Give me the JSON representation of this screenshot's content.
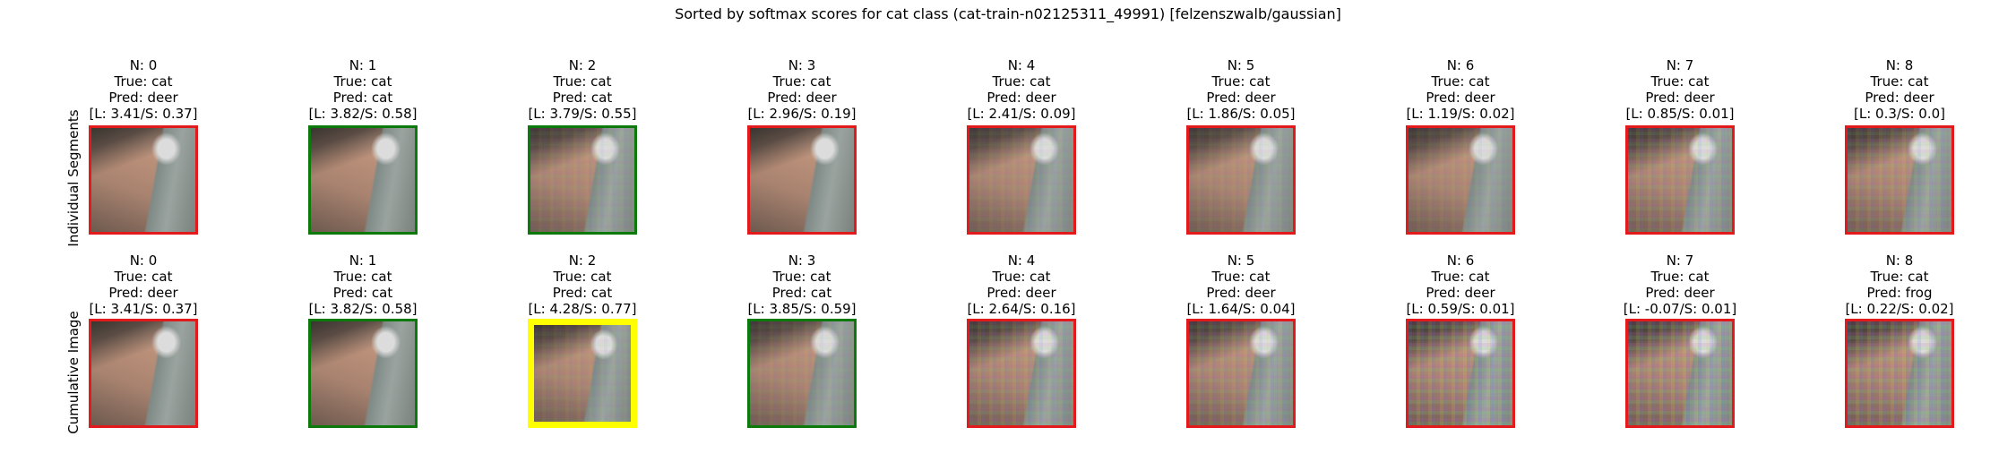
{
  "title": "Sorted by softmax scores for cat class (cat-train-n02125311_49991) [felzenszwalb/gaussian]",
  "rows": [
    {
      "label": "Individual Segments",
      "panels": [
        {
          "n": "N: 0",
          "true": "True: cat",
          "pred": "Pred: deer",
          "score": "[L: 3.41/S: 0.37]",
          "border": "red",
          "noise": 0
        },
        {
          "n": "N: 1",
          "true": "True: cat",
          "pred": "Pred: cat",
          "score": "[L: 3.82/S: 0.58]",
          "border": "green",
          "noise": 0
        },
        {
          "n": "N: 2",
          "true": "True: cat",
          "pred": "Pred: cat",
          "score": "[L: 3.79/S: 0.55]",
          "border": "green",
          "noise": 1
        },
        {
          "n": "N: 3",
          "true": "True: cat",
          "pred": "Pred: deer",
          "score": "[L: 2.96/S: 0.19]",
          "border": "red",
          "noise": 0
        },
        {
          "n": "N: 4",
          "true": "True: cat",
          "pred": "Pred: deer",
          "score": "[L: 2.41/S: 0.09]",
          "border": "red",
          "noise": 1
        },
        {
          "n": "N: 5",
          "true": "True: cat",
          "pred": "Pred: deer",
          "score": "[L: 1.86/S: 0.05]",
          "border": "red",
          "noise": 1
        },
        {
          "n": "N: 6",
          "true": "True: cat",
          "pred": "Pred: deer",
          "score": "[L: 1.19/S: 0.02]",
          "border": "red",
          "noise": 1
        },
        {
          "n": "N: 7",
          "true": "True: cat",
          "pred": "Pred: deer",
          "score": "[L: 0.85/S: 0.01]",
          "border": "red",
          "noise": 2
        },
        {
          "n": "N: 8",
          "true": "True: cat",
          "pred": "Pred: deer",
          "score": "[L: 0.3/S: 0.0]",
          "border": "red",
          "noise": 2
        }
      ]
    },
    {
      "label": "Cumulative Image",
      "panels": [
        {
          "n": "N: 0",
          "true": "True: cat",
          "pred": "Pred: deer",
          "score": "[L: 3.41/S: 0.37]",
          "border": "red",
          "noise": 0
        },
        {
          "n": "N: 1",
          "true": "True: cat",
          "pred": "Pred: cat",
          "score": "[L: 3.82/S: 0.58]",
          "border": "green",
          "noise": 0
        },
        {
          "n": "N: 2",
          "true": "True: cat",
          "pred": "Pred: cat",
          "score": "[L: 4.28/S: 0.77]",
          "border": "yellow",
          "noise": 1
        },
        {
          "n": "N: 3",
          "true": "True: cat",
          "pred": "Pred: cat",
          "score": "[L: 3.85/S: 0.59]",
          "border": "green",
          "noise": 1
        },
        {
          "n": "N: 4",
          "true": "True: cat",
          "pred": "Pred: deer",
          "score": "[L: 2.64/S: 0.16]",
          "border": "red",
          "noise": 2
        },
        {
          "n": "N: 5",
          "true": "True: cat",
          "pred": "Pred: deer",
          "score": "[L: 1.64/S: 0.04]",
          "border": "red",
          "noise": 2
        },
        {
          "n": "N: 6",
          "true": "True: cat",
          "pred": "Pred: deer",
          "score": "[L: 0.59/S: 0.01]",
          "border": "red",
          "noise": 3
        },
        {
          "n": "N: 7",
          "true": "True: cat",
          "pred": "Pred: deer",
          "score": "[L: -0.07/S: 0.01]",
          "border": "red",
          "noise": 3
        },
        {
          "n": "N: 8",
          "true": "True: cat",
          "pred": "Pred: frog",
          "score": "[L: 0.22/S: 0.02]",
          "border": "red",
          "noise": 3
        }
      ]
    }
  ]
}
